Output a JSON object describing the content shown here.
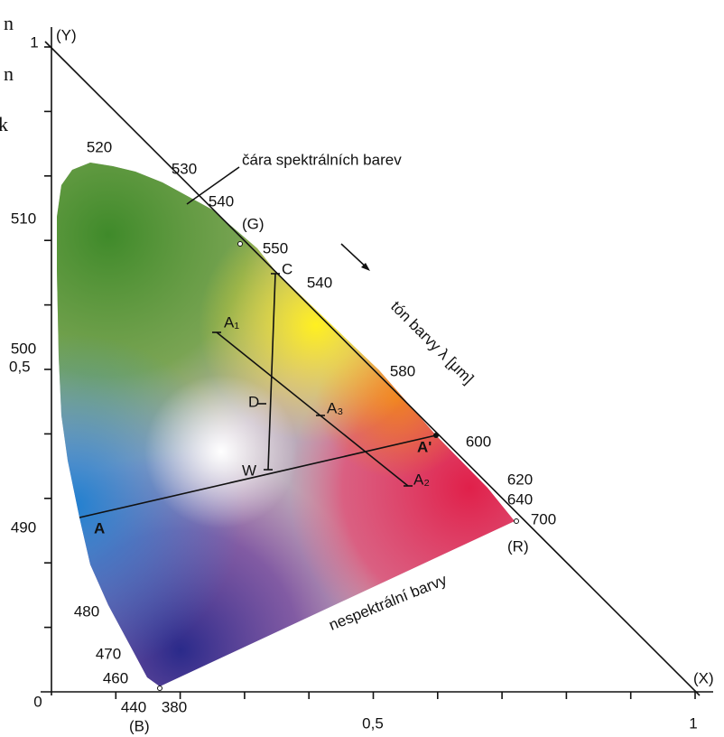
{
  "margin_text": [
    "n",
    "n",
    "k"
  ],
  "axes": {
    "y_name": "(Y)",
    "x_name": "(X)",
    "y_max": "1",
    "x_max": "1",
    "origin": "0",
    "x_mid": "0,5",
    "y_mid": "0,5"
  },
  "wavelength_labels": [
    "520",
    "530",
    "540",
    "550",
    "540",
    "580",
    "600",
    "620",
    "640",
    "700",
    "510",
    "500",
    "490",
    "480",
    "470",
    "460",
    "440",
    "380"
  ],
  "primaries": {
    "green": "(G)",
    "red": "(R)",
    "blue": "(B)"
  },
  "points": {
    "C": "C",
    "D": "D",
    "W": "W",
    "A": "A",
    "A_prime": "A'",
    "A1": "A₁",
    "A2": "A₂",
    "A3": "A₃"
  },
  "annotations": {
    "spectral_line": "čára spektrálních barev",
    "hue": "tón barvy λ [μm]",
    "nonspectral": "nespektrální barvy"
  }
}
